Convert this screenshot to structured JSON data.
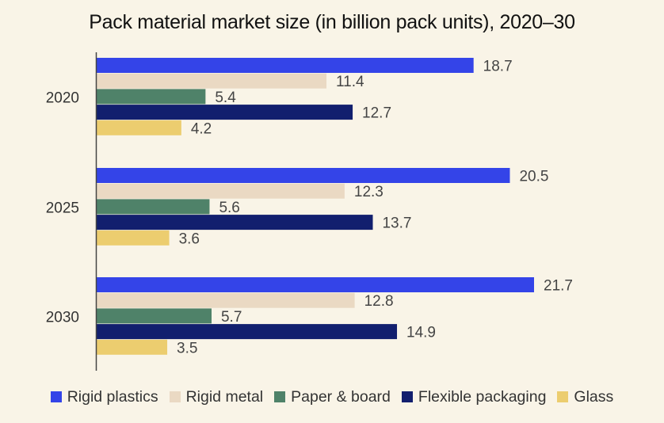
{
  "chart_data": {
    "type": "bar",
    "orientation": "horizontal",
    "title": "Pack material market size (in billion pack units), 2020–30",
    "categories": [
      "2020",
      "2025",
      "2030"
    ],
    "series": [
      {
        "name": "Rigid plastics",
        "color": "#3444e8",
        "values": [
          18.7,
          20.5,
          21.7
        ]
      },
      {
        "name": "Rigid metal",
        "color": "#ead9c3",
        "values": [
          11.4,
          12.3,
          12.8
        ]
      },
      {
        "name": "Paper & board",
        "color": "#4f8269",
        "values": [
          5.4,
          5.6,
          5.7
        ]
      },
      {
        "name": "Flexible packaging",
        "color": "#121f6e",
        "values": [
          12.7,
          13.7,
          14.9
        ]
      },
      {
        "name": "Glass",
        "color": "#eccd6f",
        "values": [
          4.2,
          3.6,
          3.5
        ]
      }
    ],
    "data_labels": true,
    "grid": false,
    "legend_position": "bottom"
  }
}
